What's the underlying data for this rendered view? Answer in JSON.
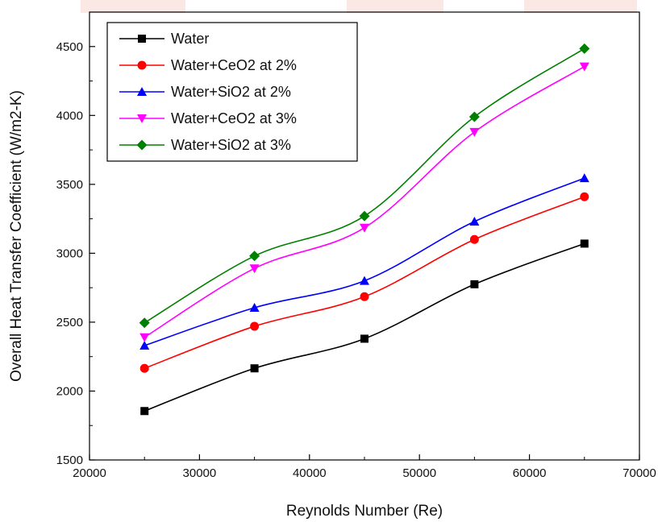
{
  "chart_data": {
    "type": "line",
    "title": "",
    "xlabel": "Reynolds Number (Re)",
    "ylabel": "Overall Heat Transfer Coefficient (W/m2-K)",
    "xlim": [
      20000,
      70000
    ],
    "ylim": [
      1500,
      4750
    ],
    "xticks": [
      20000,
      30000,
      40000,
      50000,
      60000,
      70000
    ],
    "yticks": [
      1500,
      2000,
      2500,
      3000,
      3500,
      4000,
      4500
    ],
    "x": [
      25000,
      35000,
      45000,
      55000,
      65000
    ],
    "legend_position": "top-left",
    "grid": false,
    "smooth": true,
    "series": [
      {
        "name": "Water",
        "color": "#000000",
        "marker": "square",
        "values": [
          1855,
          2165,
          2380,
          2775,
          3070
        ]
      },
      {
        "name": "Water+CeO2 at 2%",
        "color": "#ff0000",
        "marker": "circle",
        "values": [
          2165,
          2470,
          2685,
          3100,
          3410
        ]
      },
      {
        "name": "Water+SiO2 at 2%",
        "color": "#0000ff",
        "marker": "triangle-up",
        "values": [
          2330,
          2605,
          2800,
          3230,
          3545
        ]
      },
      {
        "name": "Water+CeO2 at 3%",
        "color": "#ff00ff",
        "marker": "triangle-down",
        "values": [
          2390,
          2890,
          3185,
          3880,
          4355
        ]
      },
      {
        "name": "Water+SiO2 at 3%",
        "color": "#008000",
        "marker": "diamond",
        "values": [
          2495,
          2980,
          3270,
          3990,
          4485
        ]
      }
    ]
  }
}
